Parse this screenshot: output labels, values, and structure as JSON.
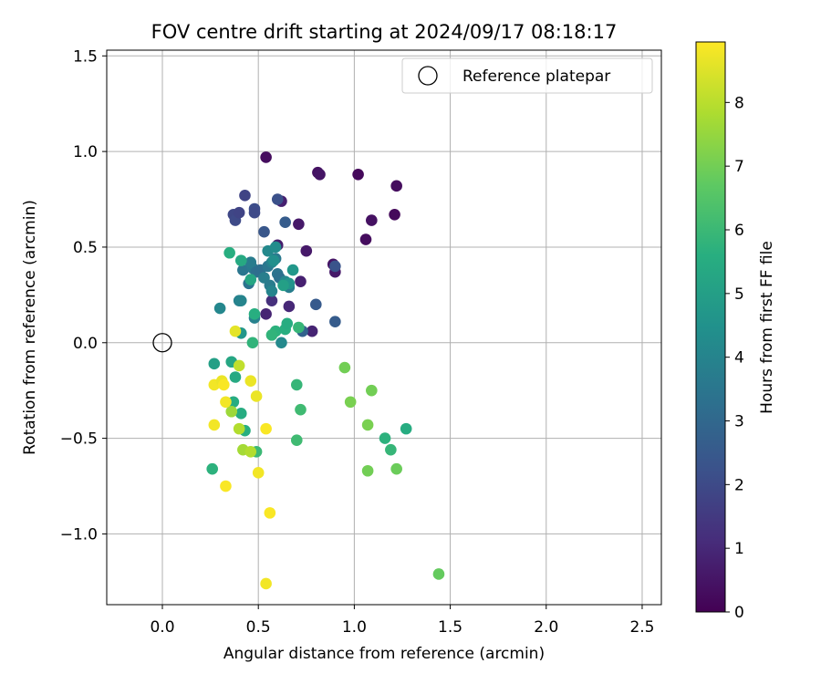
{
  "chart_data": {
    "type": "scatter",
    "title": "FOV centre drift starting at 2024/09/17 08:18:17",
    "xlabel": "Angular distance from reference (arcmin)",
    "ylabel": "Rotation from reference (arcmin)",
    "xlim": [
      -0.29,
      2.6
    ],
    "ylim": [
      -1.37,
      1.53
    ],
    "xticks": [
      0.0,
      0.5,
      1.0,
      1.5,
      2.0,
      2.5
    ],
    "xtick_labels": [
      "0.0",
      "0.5",
      "1.0",
      "1.5",
      "2.0",
      "2.5"
    ],
    "yticks": [
      -1.0,
      -0.5,
      0.0,
      0.5,
      1.0,
      1.5
    ],
    "ytick_labels": [
      "−1.0",
      "−0.5",
      "0.0",
      "0.5",
      "1.0",
      "1.5"
    ],
    "grid": true,
    "legend": {
      "position": "upper-right",
      "label": "Reference platepar"
    },
    "reference_point": {
      "x": 0.0,
      "y": 0.0
    },
    "colorbar": {
      "label": "Hours from first FF file",
      "colormap": "viridis",
      "range": [
        0,
        8.95
      ],
      "ticks": [
        0,
        1,
        2,
        3,
        4,
        5,
        6,
        7,
        8
      ],
      "tick_labels": [
        "0",
        "1",
        "2",
        "3",
        "4",
        "5",
        "6",
        "7",
        "8"
      ]
    },
    "points": [
      [
        0.54,
        0.97,
        0.3
      ],
      [
        0.81,
        0.89,
        0.4
      ],
      [
        0.82,
        0.88,
        0.5
      ],
      [
        1.02,
        0.88,
        0.2
      ],
      [
        1.22,
        0.82,
        0.3
      ],
      [
        0.62,
        0.74,
        0.8
      ],
      [
        1.09,
        0.64,
        0.4
      ],
      [
        1.21,
        0.67,
        0.2
      ],
      [
        0.71,
        0.62,
        0.6
      ],
      [
        1.06,
        0.54,
        0.3
      ],
      [
        0.6,
        0.51,
        0.7
      ],
      [
        0.75,
        0.48,
        0.6
      ],
      [
        0.89,
        0.41,
        0.5
      ],
      [
        0.9,
        0.37,
        0.6
      ],
      [
        0.72,
        0.32,
        0.8
      ],
      [
        0.54,
        0.15,
        0.9
      ],
      [
        0.66,
        0.19,
        1.0
      ],
      [
        0.78,
        0.06,
        0.9
      ],
      [
        0.57,
        0.22,
        1.2
      ],
      [
        0.43,
        0.77,
        1.8
      ],
      [
        0.37,
        0.67,
        1.9
      ],
      [
        0.38,
        0.64,
        2.0
      ],
      [
        0.4,
        0.68,
        1.8
      ],
      [
        0.48,
        0.7,
        2.1
      ],
      [
        0.48,
        0.68,
        2.0
      ],
      [
        0.6,
        0.75,
        2.2
      ],
      [
        0.53,
        0.58,
        2.4
      ],
      [
        0.64,
        0.63,
        2.6
      ],
      [
        0.9,
        0.4,
        2.3
      ],
      [
        0.8,
        0.2,
        2.5
      ],
      [
        0.9,
        0.11,
        2.6
      ],
      [
        0.73,
        0.06,
        2.8
      ],
      [
        0.42,
        0.38,
        3.5
      ],
      [
        0.47,
        0.39,
        3.6
      ],
      [
        0.46,
        0.42,
        3.7
      ],
      [
        0.49,
        0.37,
        3.3
      ],
      [
        0.51,
        0.38,
        3.2
      ],
      [
        0.45,
        0.31,
        3.4
      ],
      [
        0.53,
        0.34,
        3.8
      ],
      [
        0.55,
        0.4,
        3.5
      ],
      [
        0.57,
        0.42,
        3.9
      ],
      [
        0.59,
        0.44,
        3.6
      ],
      [
        0.6,
        0.36,
        3.4
      ],
      [
        0.61,
        0.34,
        3.3
      ],
      [
        0.56,
        0.3,
        3.7
      ],
      [
        0.57,
        0.27,
        4.0
      ],
      [
        0.64,
        0.32,
        4.1
      ],
      [
        0.66,
        0.29,
        3.8
      ],
      [
        0.55,
        0.48,
        4.2
      ],
      [
        0.59,
        0.5,
        4.3
      ],
      [
        0.58,
        0.43,
        4.4
      ],
      [
        0.4,
        0.22,
        3.9
      ],
      [
        0.41,
        0.22,
        4.0
      ],
      [
        0.3,
        0.18,
        4.1
      ],
      [
        0.48,
        0.13,
        3.9
      ],
      [
        0.66,
        0.31,
        4.6
      ],
      [
        0.68,
        0.38,
        4.7
      ],
      [
        0.63,
        0.3,
        5.0
      ],
      [
        0.62,
        0.0,
        4.2
      ],
      [
        0.41,
        0.05,
        4.7
      ],
      [
        0.35,
        0.47,
        5.6
      ],
      [
        0.41,
        0.43,
        5.4
      ],
      [
        0.46,
        0.33,
        5.3
      ],
      [
        0.48,
        0.15,
        5.6
      ],
      [
        0.47,
        0.0,
        5.8
      ],
      [
        0.59,
        0.06,
        5.7
      ],
      [
        0.57,
        0.04,
        5.8
      ],
      [
        0.64,
        0.07,
        5.6
      ],
      [
        0.65,
        0.1,
        5.5
      ],
      [
        0.71,
        0.08,
        5.9
      ],
      [
        0.7,
        -0.22,
        5.9
      ],
      [
        0.27,
        -0.11,
        5.0
      ],
      [
        0.36,
        -0.1,
        5.3
      ],
      [
        0.38,
        -0.18,
        5.4
      ],
      [
        0.37,
        -0.31,
        5.5
      ],
      [
        0.41,
        -0.37,
        5.5
      ],
      [
        0.43,
        -0.46,
        5.6
      ],
      [
        0.26,
        -0.66,
        5.7
      ],
      [
        0.49,
        -0.57,
        6.0
      ],
      [
        0.72,
        -0.35,
        6.1
      ],
      [
        0.7,
        -0.51,
        6.1
      ],
      [
        1.16,
        -0.5,
        5.7
      ],
      [
        1.27,
        -0.45,
        5.5
      ],
      [
        1.19,
        -0.56,
        5.9
      ],
      [
        0.95,
        -0.13,
        7.0
      ],
      [
        0.98,
        -0.31,
        7.1
      ],
      [
        1.09,
        -0.25,
        7.0
      ],
      [
        1.07,
        -0.43,
        7.1
      ],
      [
        1.07,
        -0.67,
        7.0
      ],
      [
        1.22,
        -0.66,
        6.9
      ],
      [
        1.44,
        -1.21,
        6.8
      ],
      [
        0.36,
        -0.36,
        7.6
      ],
      [
        0.42,
        -0.56,
        7.7
      ],
      [
        0.4,
        -0.45,
        7.9
      ],
      [
        0.46,
        -0.57,
        7.9
      ],
      [
        0.4,
        -0.12,
        8.1
      ],
      [
        0.38,
        0.06,
        8.6
      ],
      [
        0.27,
        -0.22,
        8.8
      ],
      [
        0.31,
        -0.2,
        8.7
      ],
      [
        0.32,
        -0.22,
        8.9
      ],
      [
        0.33,
        -0.31,
        8.8
      ],
      [
        0.27,
        -0.43,
        8.8
      ],
      [
        0.46,
        -0.2,
        8.7
      ],
      [
        0.49,
        -0.28,
        8.7
      ],
      [
        0.54,
        -0.45,
        8.9
      ],
      [
        0.5,
        -0.68,
        8.8
      ],
      [
        0.33,
        -0.75,
        8.9
      ],
      [
        0.56,
        -0.89,
        8.9
      ],
      [
        0.54,
        -1.26,
        8.8
      ]
    ]
  }
}
